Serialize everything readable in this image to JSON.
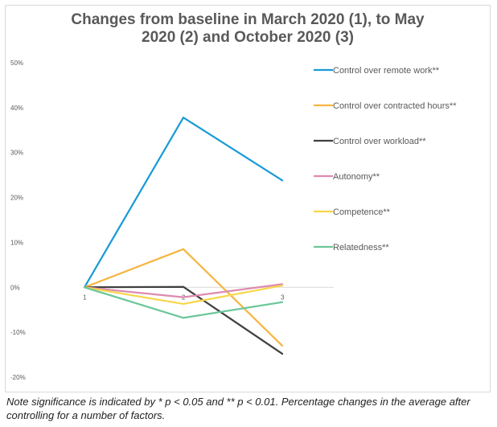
{
  "chart_data": {
    "type": "line",
    "title": "Changes from baseline in March 2020 (1), to May\n2020 (2) and October 2020 (3)",
    "x": [
      "1",
      "2",
      "3"
    ],
    "y_ticks": [
      "50%",
      "40%",
      "30%",
      "20%",
      "10%",
      "0%",
      "-10%",
      "-20%"
    ],
    "ylim": [
      -20,
      50
    ],
    "y_unit": "percent",
    "grid": false,
    "legend_position": "right",
    "series": [
      {
        "name": "Control over remote work**",
        "color": "#1a9bd7",
        "values": [
          0,
          37.8,
          23.8
        ]
      },
      {
        "name": "Control over contracted hours**",
        "color": "#f5b642",
        "values": [
          0,
          8.5,
          -13
        ]
      },
      {
        "name": "Control over workload**",
        "color": "#404040",
        "values": [
          0,
          0.1,
          -14.8
        ]
      },
      {
        "name": "Autonomy**",
        "color": "#dd8ab0",
        "values": [
          0,
          -2.2,
          0.7
        ]
      },
      {
        "name": "Competence**",
        "color": "#f7d64a",
        "values": [
          0,
          -3.7,
          0.4
        ]
      },
      {
        "name": "Relatedness**",
        "color": "#6cc79a",
        "values": [
          0,
          -6.8,
          -3.3
        ]
      }
    ]
  },
  "note": "Note significance is indicated by * p < 0.05 and ** p < 0.01. Percentage changes in the average after controlling for a number of factors."
}
